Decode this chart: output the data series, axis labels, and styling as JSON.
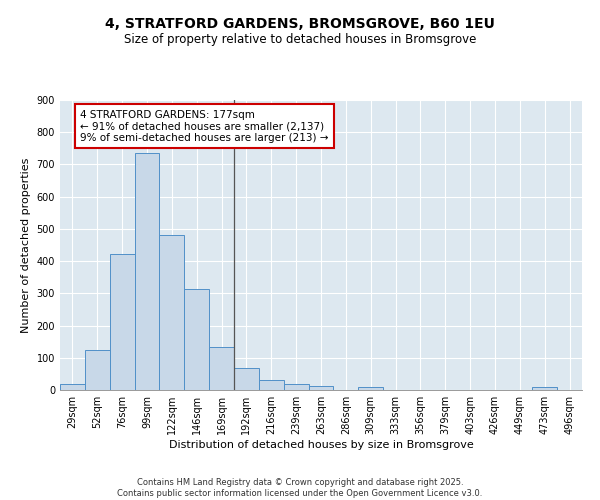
{
  "title": "4, STRATFORD GARDENS, BROMSGROVE, B60 1EU",
  "subtitle": "Size of property relative to detached houses in Bromsgrove",
  "xlabel": "Distribution of detached houses by size in Bromsgrove",
  "ylabel": "Number of detached properties",
  "bar_labels": [
    "29sqm",
    "52sqm",
    "76sqm",
    "99sqm",
    "122sqm",
    "146sqm",
    "169sqm",
    "192sqm",
    "216sqm",
    "239sqm",
    "263sqm",
    "286sqm",
    "309sqm",
    "333sqm",
    "356sqm",
    "379sqm",
    "403sqm",
    "426sqm",
    "449sqm",
    "473sqm",
    "496sqm"
  ],
  "bar_values": [
    20,
    125,
    422,
    737,
    482,
    315,
    134,
    68,
    32,
    20,
    12,
    0,
    10,
    0,
    0,
    0,
    0,
    0,
    0,
    8,
    0
  ],
  "bar_color": "#c8d8e8",
  "bar_edge_color": "#5090c8",
  "annotation_text": "4 STRATFORD GARDENS: 177sqm\n← 91% of detached houses are smaller (2,137)\n9% of semi-detached houses are larger (213) →",
  "annotation_box_color": "#ffffff",
  "annotation_box_edge": "#cc0000",
  "ylim": [
    0,
    900
  ],
  "yticks": [
    0,
    100,
    200,
    300,
    400,
    500,
    600,
    700,
    800,
    900
  ],
  "background_color": "#dde8f0",
  "footer_line1": "Contains HM Land Registry data © Crown copyright and database right 2025.",
  "footer_line2": "Contains public sector information licensed under the Open Government Licence v3.0.",
  "title_fontsize": 10,
  "subtitle_fontsize": 8.5,
  "ylabel_fontsize": 8,
  "xlabel_fontsize": 8,
  "tick_fontsize": 7,
  "annotation_fontsize": 7.5,
  "footer_fontsize": 6
}
